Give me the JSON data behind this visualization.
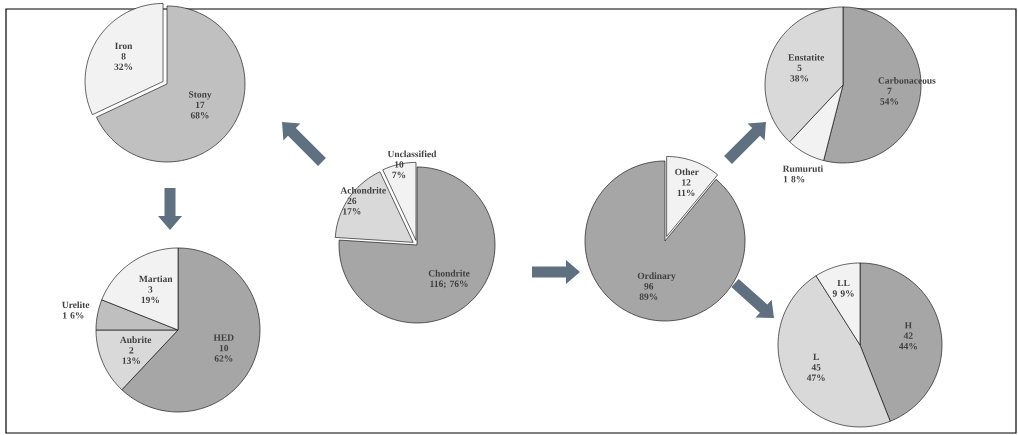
{
  "chart_data": [
    {
      "type": "pie",
      "categories": [
        "Stony",
        "Iron"
      ],
      "values": [
        68,
        32
      ],
      "colors": [
        "#c0c0c0",
        "#f2f2f2"
      ],
      "value_labels": [
        "17 68%",
        "8 32%"
      ]
    },
    {
      "type": "pie",
      "categories": [
        "Martian",
        "HED",
        "Aubrite",
        "Urelite"
      ],
      "values": [
        19,
        62,
        13,
        6
      ],
      "colors": [
        "#f2f2f2",
        "#a6a6a6",
        "#d9d9d9",
        "#bfbfbf"
      ],
      "value_labels": [
        "3 19%",
        "10 62%",
        "2 13%",
        "1 6%"
      ]
    },
    {
      "type": "pie",
      "categories": [
        "Chondrite",
        "Achondrite",
        "Unclassified"
      ],
      "values": [
        76,
        17,
        7
      ],
      "colors": [
        "#a6a6a6",
        "#d9d9d9",
        "#f2f2f2"
      ],
      "value_labels": [
        "116; 76%",
        "26 17%",
        "10 7%"
      ]
    },
    {
      "type": "pie",
      "categories": [
        "Other",
        "Ordinary"
      ],
      "values": [
        11,
        89
      ],
      "colors": [
        "#f2f2f2",
        "#a6a6a6"
      ],
      "value_labels": [
        "12 11%",
        "96 89%"
      ]
    },
    {
      "type": "pie",
      "categories": [
        "Carbonaceous",
        "Rumuruti",
        "Enstatite"
      ],
      "values": [
        54,
        8,
        38
      ],
      "colors": [
        "#a6a6a6",
        "#f2f2f2",
        "#d9d9d9"
      ],
      "value_labels": [
        "7 54%",
        "1 8%",
        "5 38%"
      ]
    },
    {
      "type": "pie",
      "categories": [
        "H",
        "L",
        "LL"
      ],
      "values": [
        44,
        47,
        9
      ],
      "colors": [
        "#a6a6a6",
        "#d9d9d9",
        "#f2f2f2"
      ],
      "value_labels": [
        "42 44%",
        "45 47%",
        "9 9%"
      ]
    }
  ]
}
